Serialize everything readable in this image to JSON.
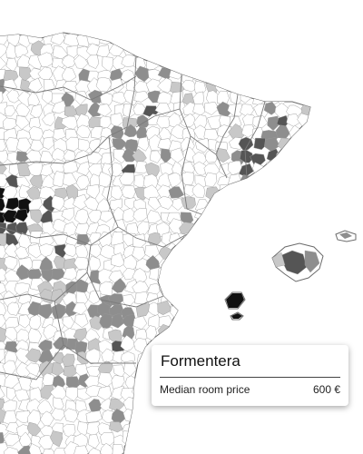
{
  "tooltip": {
    "title": "Formentera",
    "rows": [
      {
        "label": "Median room price",
        "value": "600 €"
      }
    ]
  },
  "legend_colors": {
    "no_data": "#ffffff",
    "low": "#c8c8c8",
    "mid": "#8e8e8e",
    "high": "#555555",
    "highest": "#111111",
    "borders": "#9a9a9a"
  },
  "regions": [
    {
      "name": "north-coast",
      "shade": "low"
    },
    {
      "name": "basque-country",
      "shade": "mid"
    },
    {
      "name": "navarra",
      "shade": "low"
    },
    {
      "name": "catalonia-coast",
      "shade": "high"
    },
    {
      "name": "barcelona-area",
      "shade": "high"
    },
    {
      "name": "madrid-area",
      "shade": "highest"
    },
    {
      "name": "valencia-area",
      "shade": "mid"
    },
    {
      "name": "mallorca",
      "shade": "mid"
    },
    {
      "name": "ibiza",
      "shade": "highest"
    },
    {
      "name": "formentera",
      "shade": "highest"
    }
  ]
}
